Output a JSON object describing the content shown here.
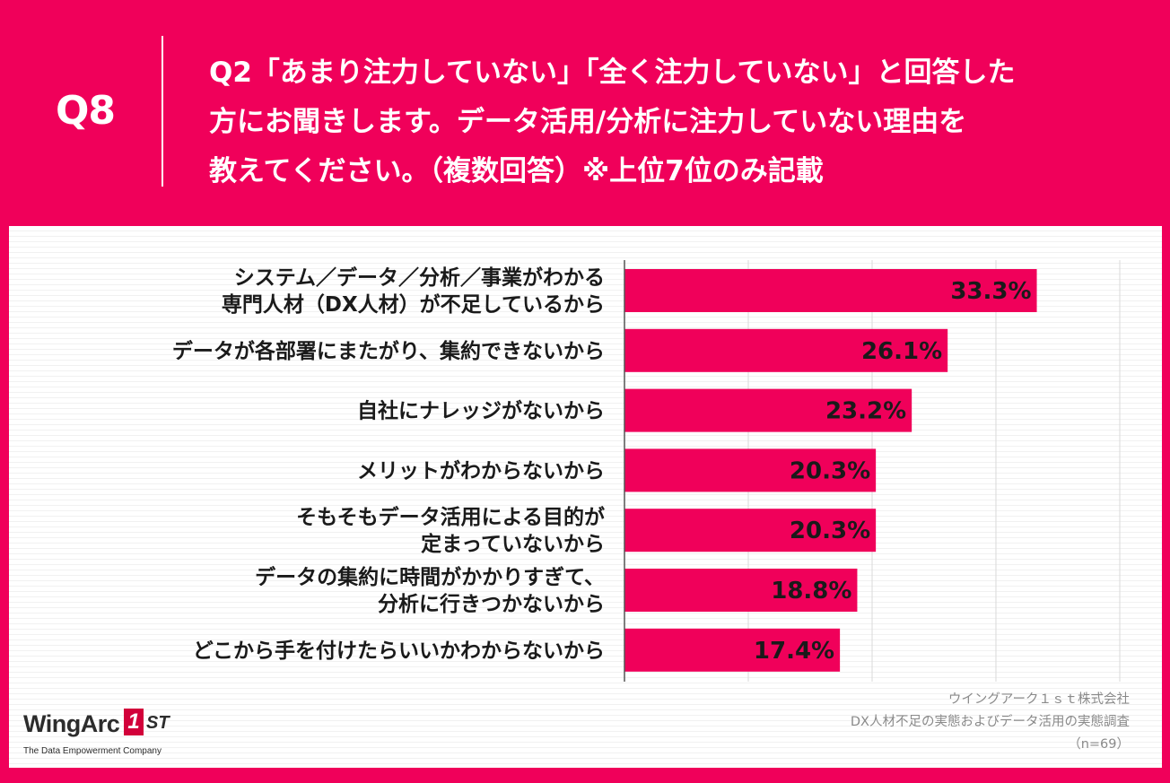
{
  "header": {
    "q_label": "Q8",
    "question_lines": [
      "Q2「あまり注力していない」「全く注力していない」と回答した",
      "方にお聞きします。データ活用/分析に注力していない理由を",
      "教えてください。（複数回答）※上位7位のみ記載"
    ]
  },
  "chart_data": {
    "type": "bar",
    "orientation": "horizontal",
    "categories": [
      [
        "システム／データ／分析／事業がわかる",
        "専門人材（DX人材）が不足しているから"
      ],
      [
        "データが各部署にまたがり、集約できないから"
      ],
      [
        "自社にナレッジがないから"
      ],
      [
        "メリットがわからないから"
      ],
      [
        "そもそもデータ活用による目的が",
        "定まっていないから"
      ],
      [
        "データの集約に時間がかかりすぎて、",
        "分析に行きつかないから"
      ],
      [
        "どこから手を付けたらいいかわからないから"
      ]
    ],
    "values": [
      33.3,
      26.1,
      23.2,
      20.3,
      20.3,
      18.8,
      17.4
    ],
    "value_labels": [
      "33.3%",
      "26.1%",
      "23.2%",
      "20.3%",
      "20.3%",
      "18.8%",
      "17.4%"
    ],
    "xlim": [
      0,
      40
    ],
    "grid": true,
    "bar_color": "#f0005a"
  },
  "credit": {
    "lines": [
      "ウイングアーク１ｓｔ株式会社",
      "DX人材不足の実態およびデータ活用の実態調査",
      "（n=69）"
    ]
  },
  "logo": {
    "word": "WingArc",
    "badge": "1",
    "suffix": "ST",
    "tagline": "The Data Empowerment Company"
  },
  "colors": {
    "brand": "#f0005a",
    "text": "#1a1a1a",
    "muted": "#8a8a8a"
  }
}
